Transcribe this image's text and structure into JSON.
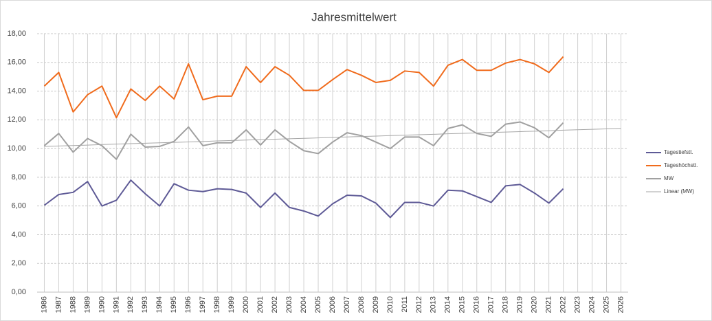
{
  "chart_data": {
    "type": "line",
    "title": "Jahresmittelwert",
    "categories": [
      "1986",
      "1987",
      "1988",
      "1989",
      "1990",
      "1991",
      "1992",
      "1993",
      "1994",
      "1995",
      "1996",
      "1997",
      "1998",
      "1999",
      "2000",
      "2001",
      "2002",
      "2003",
      "2004",
      "2005",
      "2006",
      "2007",
      "2008",
      "2009",
      "2010",
      "2011",
      "2012",
      "2013",
      "2014",
      "2015",
      "2016",
      "2017",
      "2018",
      "2019",
      "2020",
      "2021",
      "2022",
      "2023",
      "2024",
      "2025",
      "2026"
    ],
    "series": [
      {
        "name": "Tagestiefstt.",
        "color": "#5e5a96",
        "width": 2,
        "values": [
          6.05,
          6.8,
          6.95,
          7.7,
          6.0,
          6.4,
          7.8,
          6.85,
          6.0,
          7.55,
          7.1,
          7.0,
          7.2,
          7.15,
          6.9,
          5.9,
          6.9,
          5.9,
          5.65,
          5.3,
          6.15,
          6.75,
          6.7,
          6.2,
          5.2,
          6.25,
          6.25,
          6.0,
          7.1,
          7.05,
          6.65,
          6.25,
          7.4,
          7.5,
          6.9,
          6.2,
          7.2,
          null,
          null,
          null,
          null
        ]
      },
      {
        "name": "Tageshöchstt.",
        "color": "#f06b1c",
        "width": 2,
        "values": [
          14.35,
          15.3,
          12.55,
          13.75,
          14.35,
          12.15,
          14.15,
          13.35,
          14.35,
          13.45,
          15.9,
          13.4,
          13.65,
          13.65,
          15.7,
          14.6,
          15.7,
          15.1,
          14.05,
          14.05,
          14.8,
          15.5,
          15.1,
          14.6,
          14.75,
          15.4,
          15.3,
          14.35,
          15.8,
          16.2,
          15.45,
          15.45,
          15.95,
          16.2,
          15.9,
          15.3,
          16.4,
          null,
          null,
          null,
          null
        ]
      },
      {
        "name": "MW",
        "color": "#a0a0a0",
        "width": 2,
        "values": [
          10.2,
          11.05,
          9.75,
          10.7,
          10.2,
          9.25,
          11.0,
          10.1,
          10.15,
          10.5,
          11.5,
          10.2,
          10.4,
          10.4,
          11.3,
          10.25,
          11.3,
          10.5,
          9.85,
          9.65,
          10.45,
          11.1,
          10.9,
          10.45,
          10.0,
          10.8,
          10.8,
          10.2,
          11.4,
          11.65,
          11.05,
          10.85,
          11.7,
          11.85,
          11.45,
          10.75,
          11.8,
          null,
          null,
          null,
          null
        ]
      },
      {
        "name": "Linear (MW)",
        "color": "#a6a6a6",
        "width": 1,
        "values": [
          10.15,
          10.18,
          10.21,
          10.24,
          10.28,
          10.31,
          10.34,
          10.37,
          10.4,
          10.43,
          10.46,
          10.49,
          10.53,
          10.56,
          10.59,
          10.62,
          10.65,
          10.68,
          10.71,
          10.74,
          10.78,
          10.81,
          10.84,
          10.87,
          10.9,
          10.93,
          10.96,
          10.99,
          11.03,
          11.06,
          11.09,
          11.12,
          11.15,
          11.18,
          11.21,
          11.24,
          11.28,
          11.31,
          11.34,
          11.37,
          11.4
        ]
      }
    ],
    "ylim": [
      0,
      18
    ],
    "yticks": [
      {
        "value": 0,
        "label": "0,00"
      },
      {
        "value": 2,
        "label": "2,00"
      },
      {
        "value": 4,
        "label": "4,00"
      },
      {
        "value": 6,
        "label": "6,00"
      },
      {
        "value": 8,
        "label": "8,00"
      },
      {
        "value": 10,
        "label": "10,00"
      },
      {
        "value": 12,
        "label": "12,00"
      },
      {
        "value": 14,
        "label": "14,00"
      },
      {
        "value": 16,
        "label": "16,00"
      },
      {
        "value": 18,
        "label": "18,00"
      }
    ],
    "grid": true,
    "legend": "right"
  }
}
